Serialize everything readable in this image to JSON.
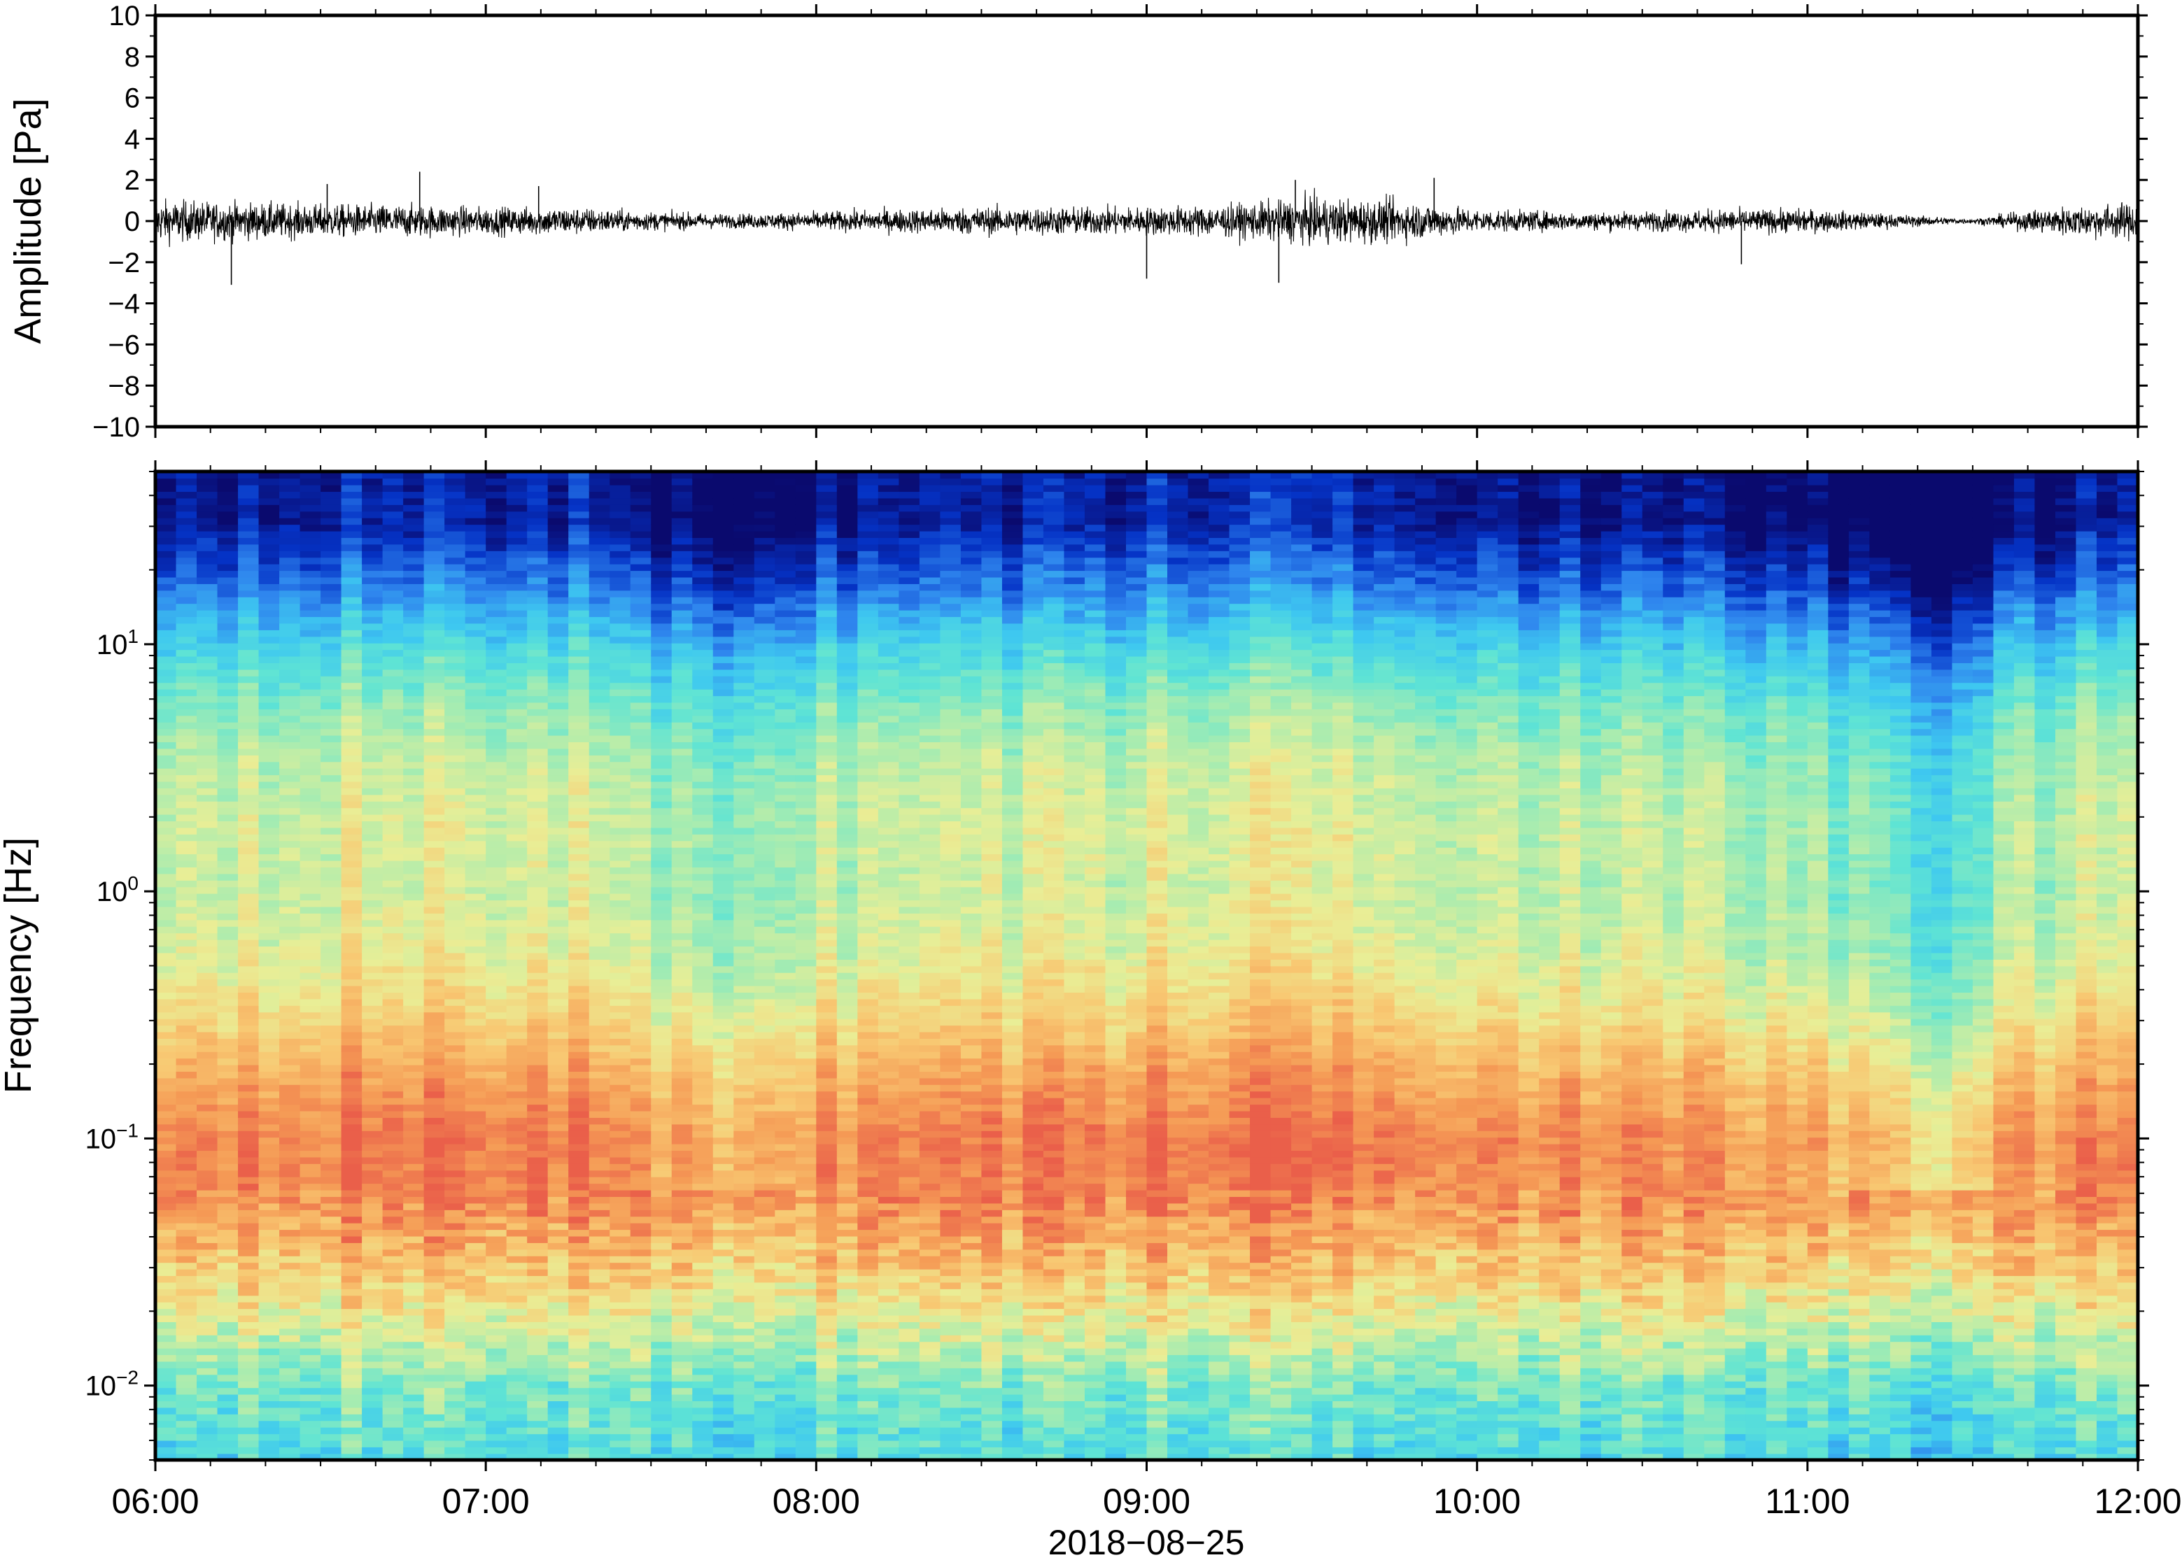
{
  "chart_data": [
    {
      "type": "line",
      "panel": "waveform",
      "ylabel": "Amplitude [Pa]",
      "ylim": [
        -10,
        10
      ],
      "yticks": [
        10,
        8,
        6,
        4,
        2,
        0,
        -2,
        -4,
        -6,
        -8,
        -10
      ],
      "ytick_labels": [
        "10",
        "8",
        "6",
        "4",
        "2",
        "0",
        "−2",
        "−4",
        "−6",
        "−8",
        "−10"
      ],
      "xlim": [
        "06:00",
        "12:00"
      ],
      "series": [
        {
          "color": "#000000",
          "x_hours": [
            6.0,
            6.25,
            6.5,
            6.75,
            7.0,
            7.25,
            7.5,
            7.75,
            8.0,
            8.25,
            8.5,
            8.75,
            9.0,
            9.25,
            9.5,
            9.75,
            10.0,
            10.25,
            10.5,
            10.75,
            11.0,
            11.25,
            11.5,
            11.75,
            12.0
          ],
          "envelope_pa": [
            0.9,
            0.8,
            0.7,
            0.7,
            0.6,
            0.6,
            0.4,
            0.3,
            0.4,
            0.5,
            0.6,
            0.6,
            0.6,
            0.7,
            1.0,
            0.9,
            0.5,
            0.4,
            0.4,
            0.5,
            0.5,
            0.3,
            0.1,
            0.6,
            0.8
          ],
          "spikes": [
            {
              "x_hours": 6.23,
              "y": -3.1
            },
            {
              "x_hours": 6.52,
              "y": 1.8
            },
            {
              "x_hours": 6.8,
              "y": 2.4
            },
            {
              "x_hours": 7.16,
              "y": 1.7
            },
            {
              "x_hours": 9.0,
              "y": -2.8
            },
            {
              "x_hours": 9.4,
              "y": -3.0
            },
            {
              "x_hours": 9.45,
              "y": 2.0
            },
            {
              "x_hours": 9.87,
              "y": 2.1
            },
            {
              "x_hours": 10.8,
              "y": -2.1
            }
          ]
        }
      ]
    },
    {
      "type": "heatmap",
      "panel": "spectrogram",
      "ylabel": "Frequency [Hz]",
      "yscale": "log",
      "ylim": [
        0.005,
        50
      ],
      "yticks": [
        0.01,
        0.1,
        1,
        10
      ],
      "ytick_labels": [
        {
          "base": "10",
          "exp": "−2"
        },
        {
          "base": "10",
          "exp": "−1"
        },
        {
          "base": "10",
          "exp": "0"
        },
        {
          "base": "10",
          "exp": "1"
        }
      ],
      "xlabel": "2018−08−25",
      "xticks": [
        "06:00",
        "07:00",
        "08:00",
        "09:00",
        "10:00",
        "11:00",
        "12:00"
      ],
      "xlim": [
        "06:00",
        "12:00"
      ],
      "colormap": "jet",
      "colormap_stops": [
        "#0a0a6e",
        "#0533c6",
        "#2f86ee",
        "#3ec8f0",
        "#5fe4d4",
        "#a8ecb0",
        "#e9ee96",
        "#f8c872",
        "#f59a55",
        "#ea5f4a"
      ],
      "freq_levels_log10": [
        -2.25,
        -2.0,
        -1.75,
        -1.5,
        -1.25,
        -1.0,
        -0.75,
        -0.5,
        -0.25,
        0.0,
        0.25,
        0.5,
        0.75,
        1.0,
        1.25,
        1.5
      ],
      "level_profile": [
        0.42,
        0.5,
        0.66,
        0.8,
        0.92,
        0.94,
        0.86,
        0.74,
        0.66,
        0.62,
        0.63,
        0.6,
        0.52,
        0.38,
        0.2,
        0.06
      ],
      "time_hours": [
        6.0,
        6.5,
        7.0,
        7.25,
        7.5,
        7.75,
        8.0,
        8.5,
        9.0,
        9.5,
        10.0,
        10.5,
        10.75,
        11.0,
        11.25,
        11.4,
        11.5,
        11.62,
        11.75,
        12.0
      ],
      "time_offset": [
        0.0,
        0.02,
        0.01,
        0.02,
        -0.06,
        -0.07,
        -0.02,
        0.0,
        0.01,
        0.04,
        0.0,
        -0.03,
        -0.04,
        -0.05,
        -0.12,
        -0.16,
        -0.16,
        -0.05,
        -0.02,
        0.0
      ]
    }
  ]
}
